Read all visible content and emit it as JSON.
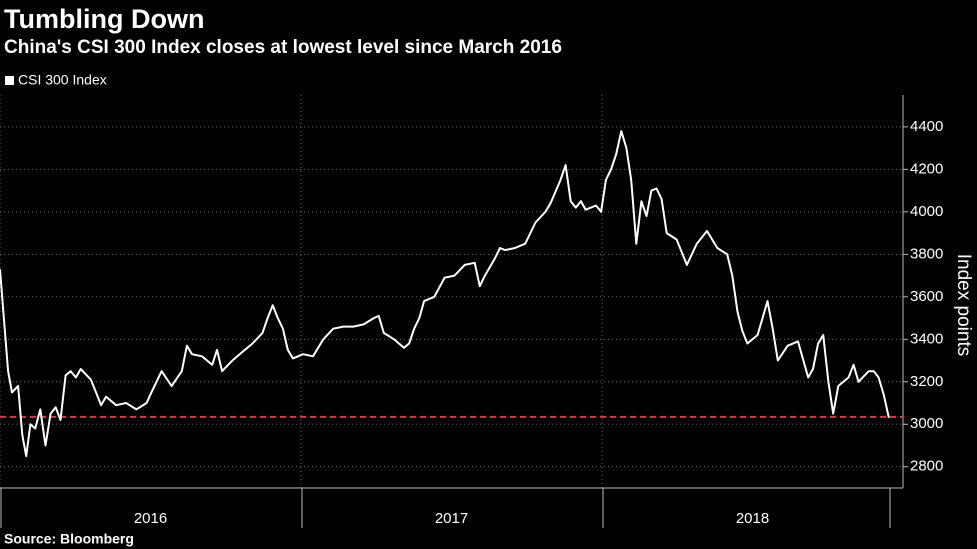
{
  "chart_data": {
    "type": "line",
    "title": "Tumbling Down",
    "subtitle": "China's CSI 300 Index closes at lowest level since March 2016",
    "y_axis_label": "Index points",
    "source": "Source: Bloomberg",
    "grid": true,
    "legend": "top-left",
    "xlim": [
      2016,
      2019
    ],
    "xticks": [
      {
        "value": 2016,
        "label": "2016"
      },
      {
        "value": 2017,
        "label": "2017"
      },
      {
        "value": 2018,
        "label": "2018"
      }
    ],
    "ylim": [
      2700,
      4550
    ],
    "yticks": [
      2800,
      3000,
      3200,
      3400,
      3600,
      3800,
      4000,
      4200,
      4400
    ],
    "reference_line": {
      "value": 3035,
      "color": "#e8333f"
    },
    "series": [
      {
        "name": "CSI 300 Index",
        "color": "#ffffff",
        "x": [
          2016.0,
          2016.01,
          2016.027,
          2016.04,
          2016.06,
          2016.074,
          2016.087,
          2016.101,
          2016.117,
          2016.134,
          2016.151,
          2016.168,
          2016.185,
          2016.201,
          2016.218,
          2016.235,
          2016.252,
          2016.268,
          2016.302,
          2016.319,
          2016.336,
          2016.352,
          2016.386,
          2016.419,
          2016.453,
          2016.487,
          2016.503,
          2016.537,
          2016.57,
          2016.604,
          2016.621,
          2016.638,
          2016.671,
          2016.705,
          2016.721,
          2016.738,
          2016.772,
          2016.805,
          2016.839,
          2016.872,
          2016.889,
          2016.906,
          2016.923,
          2016.94,
          2016.956,
          2016.973,
          2017.007,
          2017.04,
          2017.074,
          2017.107,
          2017.141,
          2017.174,
          2017.208,
          2017.242,
          2017.258,
          2017.275,
          2017.309,
          2017.342,
          2017.359,
          2017.376,
          2017.393,
          2017.409,
          2017.443,
          2017.477,
          2017.51,
          2017.544,
          2017.577,
          2017.594,
          2017.611,
          2017.644,
          2017.661,
          2017.678,
          2017.711,
          2017.745,
          2017.779,
          2017.812,
          2017.829,
          2017.862,
          2017.879,
          2017.896,
          2017.913,
          2017.93,
          2017.946,
          2017.98,
          2017.997,
          2018.013,
          2018.03,
          2018.047,
          2018.064,
          2018.081,
          2018.097,
          2018.114,
          2018.131,
          2018.148,
          2018.164,
          2018.181,
          2018.198,
          2018.215,
          2018.248,
          2018.282,
          2018.315,
          2018.349,
          2018.383,
          2018.416,
          2018.433,
          2018.45,
          2018.466,
          2018.483,
          2018.517,
          2018.55,
          2018.567,
          2018.584,
          2018.617,
          2018.651,
          2018.685,
          2018.701,
          2018.718,
          2018.735,
          2018.752,
          2018.768,
          2018.785,
          2018.819,
          2018.836,
          2018.852,
          2018.886,
          2018.903,
          2018.919,
          2018.936,
          2018.953
        ],
        "values": [
          3730,
          3550,
          3250,
          3150,
          3180,
          2950,
          2850,
          3000,
          2980,
          3070,
          2900,
          3050,
          3080,
          3020,
          3230,
          3250,
          3220,
          3260,
          3210,
          3150,
          3090,
          3130,
          3090,
          3100,
          3070,
          3100,
          3150,
          3250,
          3180,
          3250,
          3370,
          3330,
          3320,
          3280,
          3350,
          3250,
          3300,
          3340,
          3380,
          3430,
          3500,
          3560,
          3500,
          3450,
          3350,
          3310,
          3330,
          3320,
          3400,
          3450,
          3460,
          3460,
          3470,
          3500,
          3510,
          3430,
          3400,
          3360,
          3380,
          3450,
          3500,
          3580,
          3600,
          3690,
          3700,
          3750,
          3760,
          3650,
          3700,
          3780,
          3830,
          3820,
          3830,
          3850,
          3950,
          4000,
          4040,
          4150,
          4220,
          4050,
          4020,
          4050,
          4010,
          4030,
          4000,
          4150,
          4200,
          4270,
          4380,
          4300,
          4150,
          3850,
          4050,
          3980,
          4100,
          4110,
          4060,
          3900,
          3870,
          3750,
          3850,
          3910,
          3830,
          3800,
          3700,
          3530,
          3440,
          3380,
          3420,
          3580,
          3450,
          3300,
          3370,
          3390,
          3220,
          3260,
          3380,
          3420,
          3200,
          3050,
          3180,
          3220,
          3280,
          3200,
          3250,
          3250,
          3220,
          3140,
          3030
        ]
      }
    ]
  }
}
